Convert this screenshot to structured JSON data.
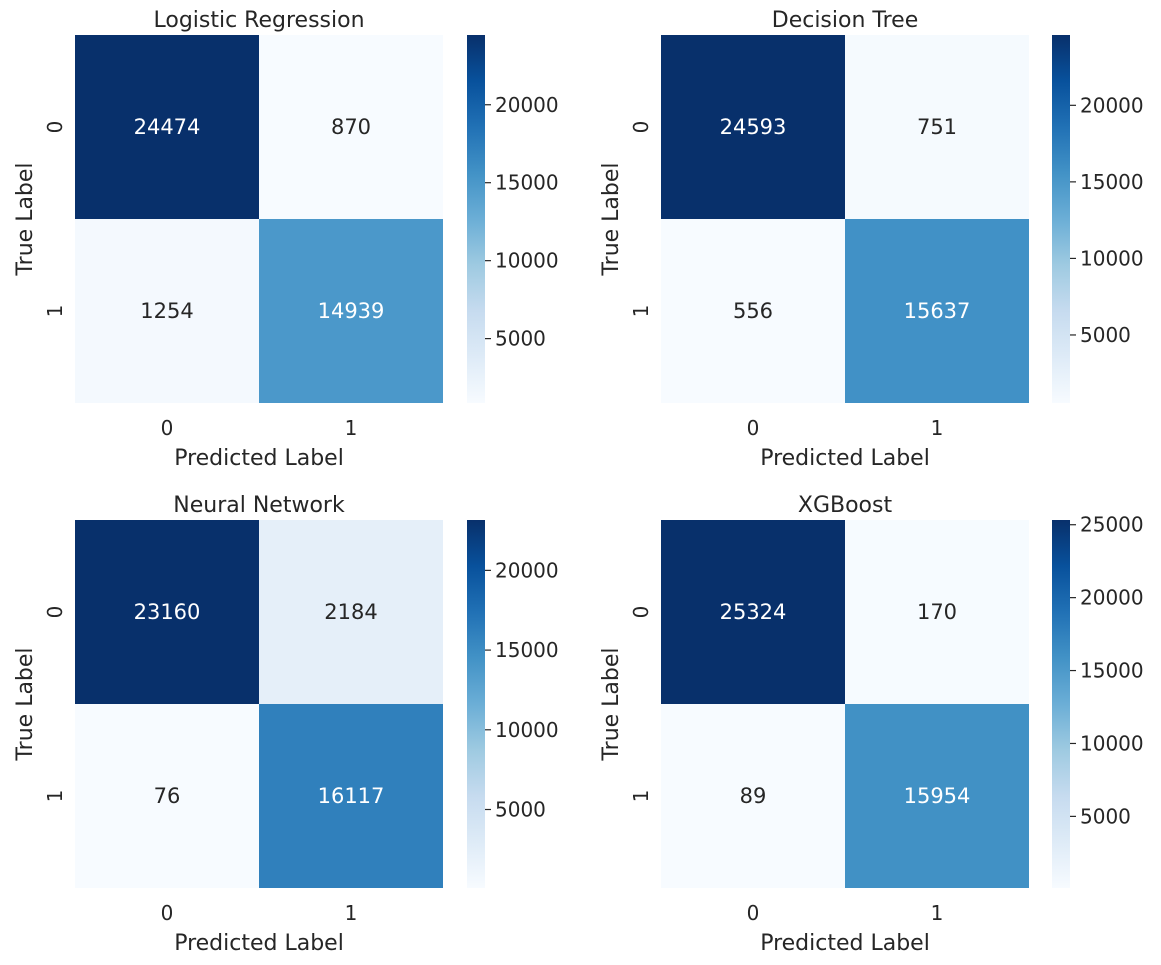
{
  "colormap": [
    "#f7fbff",
    "#deebf7",
    "#c6dbef",
    "#9ecae1",
    "#6baed6",
    "#4292c6",
    "#2171b5",
    "#08519c",
    "#08306b"
  ],
  "text_colors": {
    "light": "#ffffff",
    "dark": "#262626"
  },
  "chart_data": [
    {
      "type": "heatmap",
      "title": "Logistic Regression",
      "xlabel": "Predicted Label",
      "ylabel": "True Label",
      "x_categories": [
        "0",
        "1"
      ],
      "y_categories": [
        "0",
        "1"
      ],
      "values": [
        [
          24474,
          870
        ],
        [
          1254,
          14939
        ]
      ],
      "colorbar": {
        "min": 870,
        "max": 24474,
        "ticks": [
          5000,
          10000,
          15000,
          20000
        ]
      }
    },
    {
      "type": "heatmap",
      "title": "Decision Tree",
      "xlabel": "Predicted Label",
      "ylabel": "True Label",
      "x_categories": [
        "0",
        "1"
      ],
      "y_categories": [
        "0",
        "1"
      ],
      "values": [
        [
          24593,
          751
        ],
        [
          556,
          15637
        ]
      ],
      "colorbar": {
        "min": 556,
        "max": 24593,
        "ticks": [
          5000,
          10000,
          15000,
          20000
        ]
      }
    },
    {
      "type": "heatmap",
      "title": "Neural Network",
      "xlabel": "Predicted Label",
      "ylabel": "True Label",
      "x_categories": [
        "0",
        "1"
      ],
      "y_categories": [
        "0",
        "1"
      ],
      "values": [
        [
          23160,
          2184
        ],
        [
          76,
          16117
        ]
      ],
      "colorbar": {
        "min": 76,
        "max": 23160,
        "ticks": [
          5000,
          10000,
          15000,
          20000
        ]
      }
    },
    {
      "type": "heatmap",
      "title": "XGBoost",
      "xlabel": "Predicted Label",
      "ylabel": "True Label",
      "x_categories": [
        "0",
        "1"
      ],
      "y_categories": [
        "0",
        "1"
      ],
      "values": [
        [
          25324,
          170
        ],
        [
          89,
          15954
        ]
      ],
      "colorbar": {
        "min": 89,
        "max": 25324,
        "ticks": [
          5000,
          10000,
          15000,
          20000,
          25000
        ]
      }
    }
  ]
}
